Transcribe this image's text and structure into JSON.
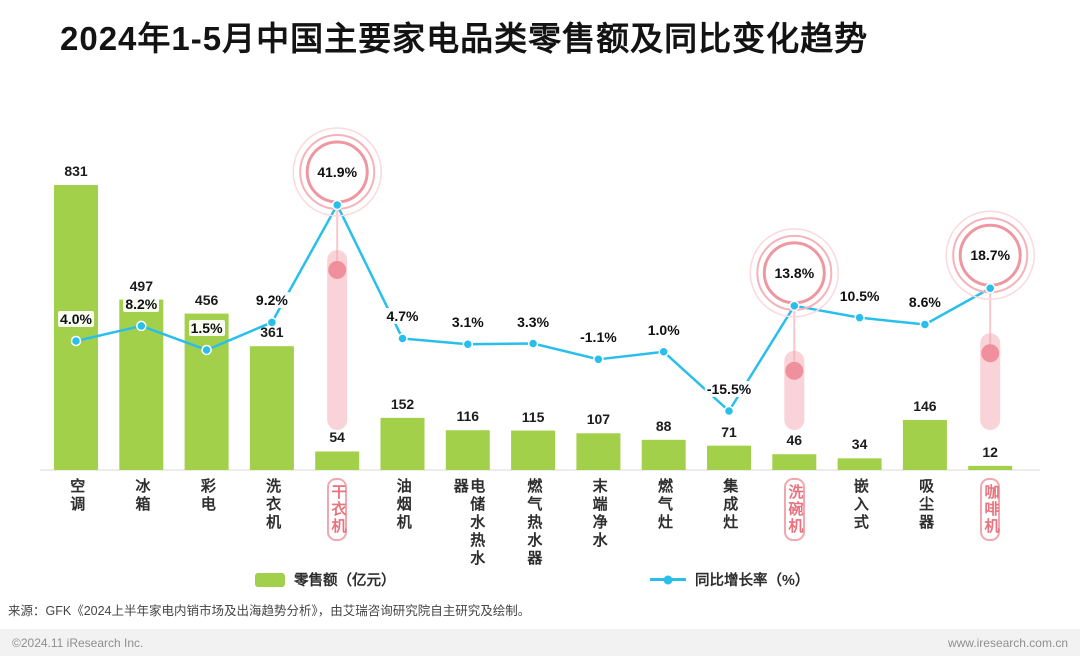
{
  "source": "来源：GFK《2024上半年家电内销市场及出海趋势分析》，由艾瑞咨询研究院自主研究及绘制。",
  "footer": {
    "left": "©2024.11 iResearch Inc.",
    "right": "www.iresearch.com.cn"
  },
  "colors": {
    "bar": "#a3d04a",
    "line": "#29bfec",
    "pill": "rgba(244,167,176,0.5)",
    "pill_dot": "rgba(237,128,141,0.8)",
    "ring_faint": "#fbd9dd",
    "ring_mid": "#f5b2ba",
    "ring_inner": "#ee97a1",
    "highlight_text": "#e8737e",
    "highlight_border": "#f2a7ae",
    "axis_line": "#d8d8d8"
  },
  "chart_data": {
    "type": "bar",
    "combo": "bar+line",
    "title": "2024年1-5月中国主要家电品类零售额及同比变化趋势",
    "categories": [
      "空调",
      "冰箱",
      "彩电",
      "洗衣机",
      "干衣机",
      "油烟机",
      "电储水热水器",
      "燃气热水器",
      "末端净水",
      "燃气灶",
      "集成灶",
      "洗碗机",
      "嵌入式",
      "吸尘器",
      "咖啡机"
    ],
    "series": [
      {
        "name": "零售额（亿元）",
        "type": "bar",
        "values": [
          831,
          497,
          456,
          361,
          54,
          152,
          116,
          115,
          107,
          88,
          71,
          46,
          34,
          146,
          12
        ]
      },
      {
        "name": "同比增长率（%）",
        "type": "line",
        "values": [
          4.0,
          8.2,
          1.5,
          9.2,
          41.9,
          4.7,
          3.1,
          3.3,
          -1.1,
          1.0,
          -15.5,
          13.8,
          10.5,
          8.6,
          18.7
        ]
      }
    ],
    "highlighted_categories": [
      "干衣机",
      "洗碗机",
      "咖啡机"
    ],
    "xlabel": "",
    "ylabel_bar": "零售额（亿元）",
    "ylabel_line": "同比增长率（%）",
    "ylim_bar": [
      0,
      900
    ],
    "ylim_line": [
      -20,
      45
    ],
    "grid": false,
    "value_labels_shown": true,
    "legend_position": "bottom"
  }
}
